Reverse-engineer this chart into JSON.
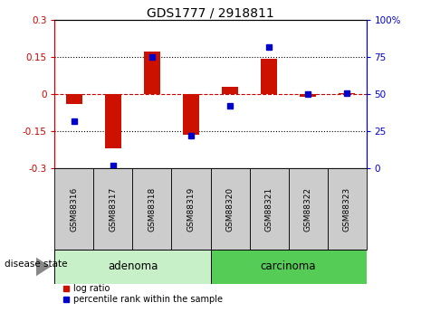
{
  "title": "GDS1777 / 2918811",
  "samples": [
    "GSM88316",
    "GSM88317",
    "GSM88318",
    "GSM88319",
    "GSM88320",
    "GSM88321",
    "GSM88322",
    "GSM88323"
  ],
  "log_ratio": [
    -0.04,
    -0.22,
    0.175,
    -0.165,
    0.03,
    0.145,
    -0.01,
    0.005
  ],
  "percentile_rank": [
    32,
    2,
    75,
    22,
    42,
    82,
    50,
    51
  ],
  "groups": [
    {
      "label": "adenoma",
      "samples": [
        0,
        1,
        2,
        3
      ],
      "color": "#c8f0c8"
    },
    {
      "label": "carcinoma",
      "samples": [
        4,
        5,
        6,
        7
      ],
      "color": "#55cc55"
    }
  ],
  "group_label": "disease state",
  "ylim_left": [
    -0.3,
    0.3
  ],
  "ylim_right": [
    0,
    100
  ],
  "yticks_left": [
    -0.3,
    -0.15,
    0,
    0.15,
    0.3
  ],
  "ytick_labels_left": [
    "-0.3",
    "-0.15",
    "0",
    "0.15",
    "0.3"
  ],
  "yticks_right": [
    0,
    25,
    50,
    75,
    100
  ],
  "ytick_labels_right": [
    "0",
    "25",
    "50",
    "75",
    "100%"
  ],
  "left_axis_color": "#cc0000",
  "right_axis_color": "#0000cc",
  "bar_color": "#cc1100",
  "dot_color": "#0000cc",
  "zero_line_color": "#cc0000",
  "bg_color": "#ffffff",
  "plot_bg_color": "#ffffff",
  "sample_box_color": "#cccccc",
  "bar_width": 0.4
}
